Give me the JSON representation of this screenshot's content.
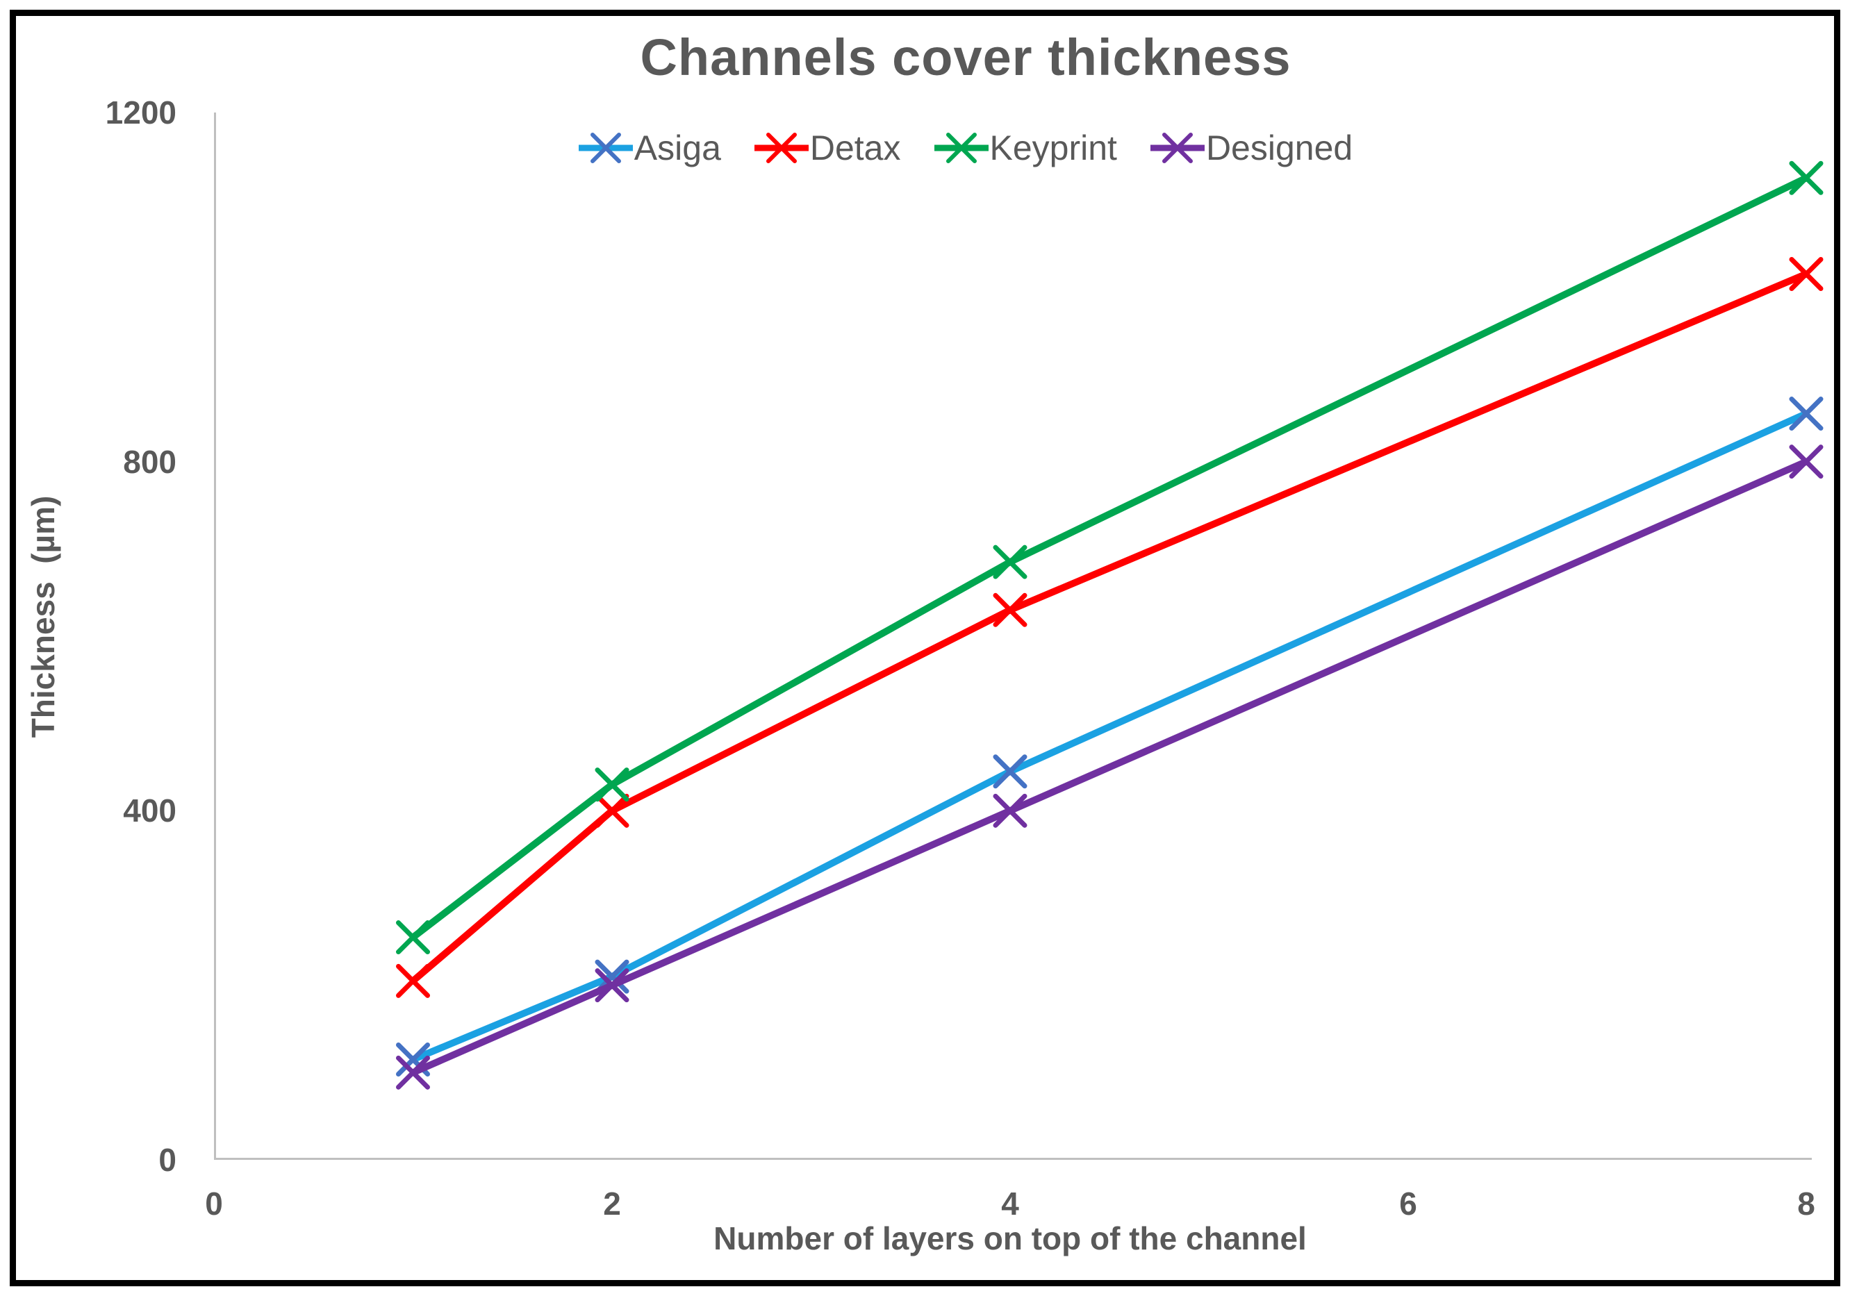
{
  "title": "Channels cover thickness",
  "colors": {
    "text": "#595959",
    "axis_line": "#BFBFBF",
    "background": "#FFFFFF",
    "border": "#000000",
    "asiga_line": "#1BA1E2",
    "asiga_marker": "#4472C4",
    "detax": "#FF0000",
    "keyprint": "#00A650",
    "designed": "#7030A0"
  },
  "chart_data": {
    "type": "line",
    "title": "Channels cover thickness",
    "xlabel": "Number of layers on top of the channel",
    "ylabel": "Thickness  (µm)",
    "x": [
      1,
      2,
      4,
      8
    ],
    "series": [
      {
        "name": "Asiga",
        "line_color": "#1BA1E2",
        "marker_color": "#4472C4",
        "values": [
          115,
          210,
          445,
          855
        ]
      },
      {
        "name": "Detax",
        "line_color": "#FF0000",
        "marker_color": "#FF0000",
        "values": [
          205,
          400,
          630,
          1015
        ]
      },
      {
        "name": "Keyprint",
        "line_color": "#00A650",
        "marker_color": "#00A650",
        "values": [
          255,
          430,
          685,
          1125
        ]
      },
      {
        "name": "Designed",
        "line_color": "#7030A0",
        "marker_color": "#7030A0",
        "values": [
          100,
          200,
          400,
          800
        ]
      }
    ],
    "xlim": [
      0,
      8
    ],
    "ylim": [
      0,
      1200
    ],
    "x_ticks": [
      0,
      2,
      4,
      6,
      8
    ],
    "y_ticks": [
      0,
      400,
      800,
      1200
    ],
    "marker": "x",
    "legend_position": "top",
    "grid": false
  }
}
